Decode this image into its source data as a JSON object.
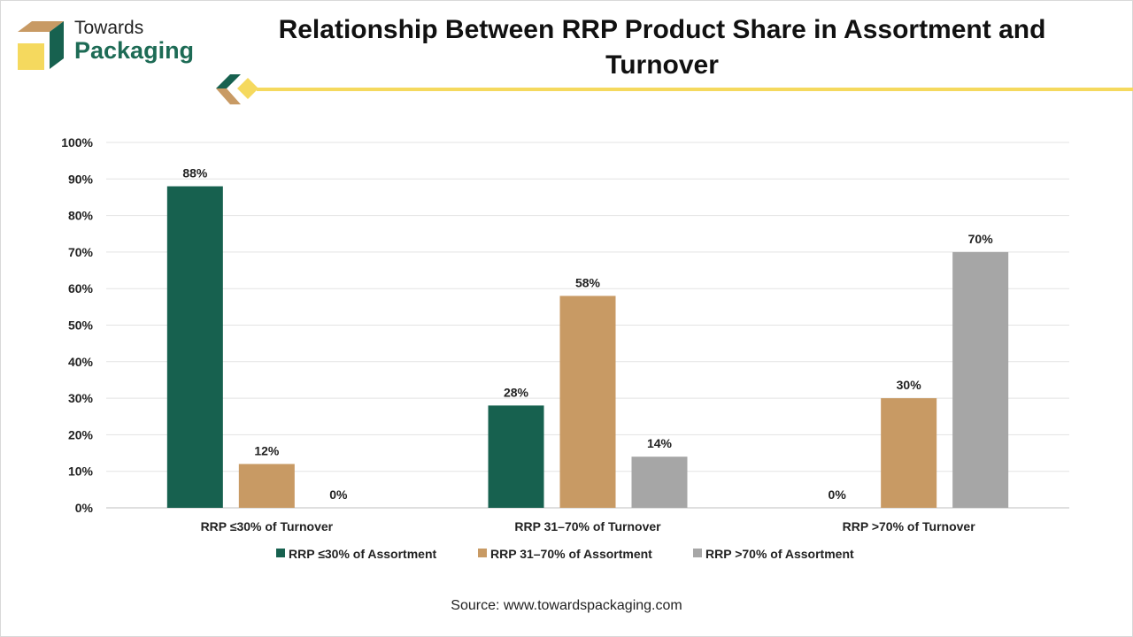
{
  "brand": {
    "line1": "Towards",
    "line2": "Packaging"
  },
  "colors": {
    "green": "#17614f",
    "tan": "#c89a64",
    "gray": "#a6a6a6",
    "yellow": "#f5d95e"
  },
  "source": "Source: www.towardspackaging.com",
  "chart_data": {
    "type": "bar",
    "title": "Relationship Between RRP Product Share in Assortment and Turnover",
    "categories": [
      "RRP ≤30% of Turnover",
      "RRP 31–70% of Turnover",
      "RRP >70% of Turnover"
    ],
    "series": [
      {
        "name": "RRP ≤30% of Assortment",
        "values": [
          88,
          28,
          0
        ]
      },
      {
        "name": "RRP 31–70% of Assortment",
        "values": [
          12,
          58,
          30
        ]
      },
      {
        "name": "RRP >70% of Assortment",
        "values": [
          0,
          14,
          70
        ]
      }
    ],
    "yticks": [
      "0%",
      "10%",
      "20%",
      "30%",
      "40%",
      "50%",
      "60%",
      "70%",
      "80%",
      "90%",
      "100%"
    ],
    "ylim": [
      0,
      100
    ],
    "grid": true,
    "legend": "bottom",
    "xlabel": "",
    "ylabel": ""
  }
}
